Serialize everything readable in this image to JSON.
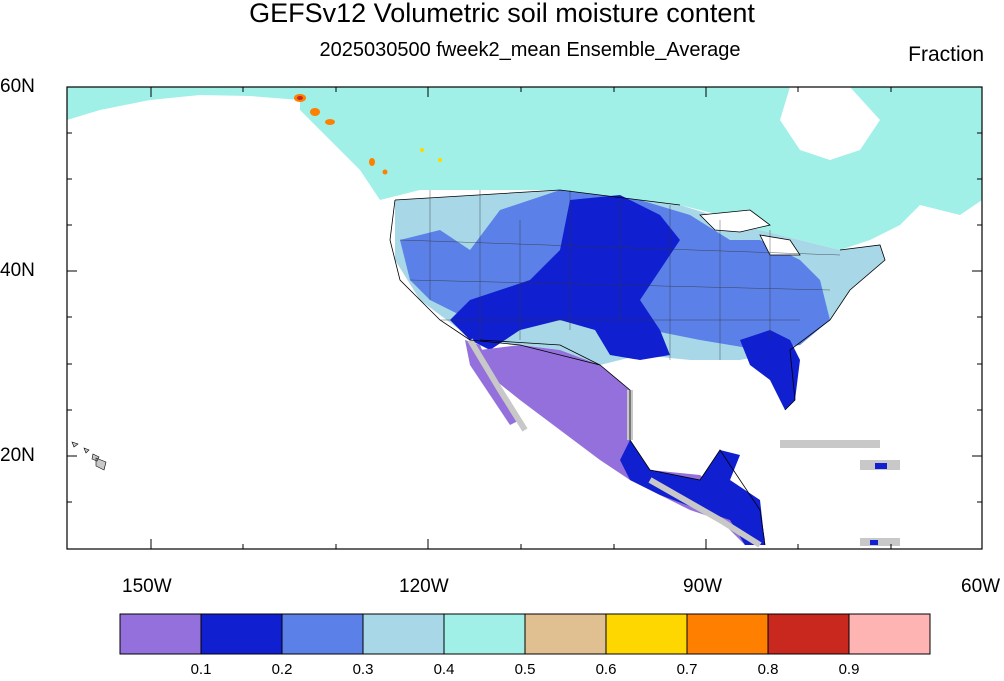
{
  "title": "GEFSv12 Volumetric soil moisture content",
  "subtitle": "2025030500 fweek2_mean Ensemble_Average",
  "units": "Fraction",
  "lat_labels": [
    "60N",
    "40N",
    "20N"
  ],
  "lon_labels": [
    "150W",
    "120W",
    "90W",
    "60W"
  ],
  "colorbar": {
    "colors": [
      "#9370DB",
      "#1020D0",
      "#5B80E8",
      "#A8D8E8",
      "#A0F0E8",
      "#E0C090",
      "#FFD700",
      "#FF7F00",
      "#C8281E",
      "#FFB4B4"
    ],
    "labels": [
      "0.1",
      "0.2",
      "0.3",
      "0.4",
      "0.5",
      "0.6",
      "0.7",
      "0.8",
      "0.9"
    ]
  },
  "legend_colors": {
    "land_mask": "#C8C8C8",
    "ocean": "#FFFFFF"
  }
}
